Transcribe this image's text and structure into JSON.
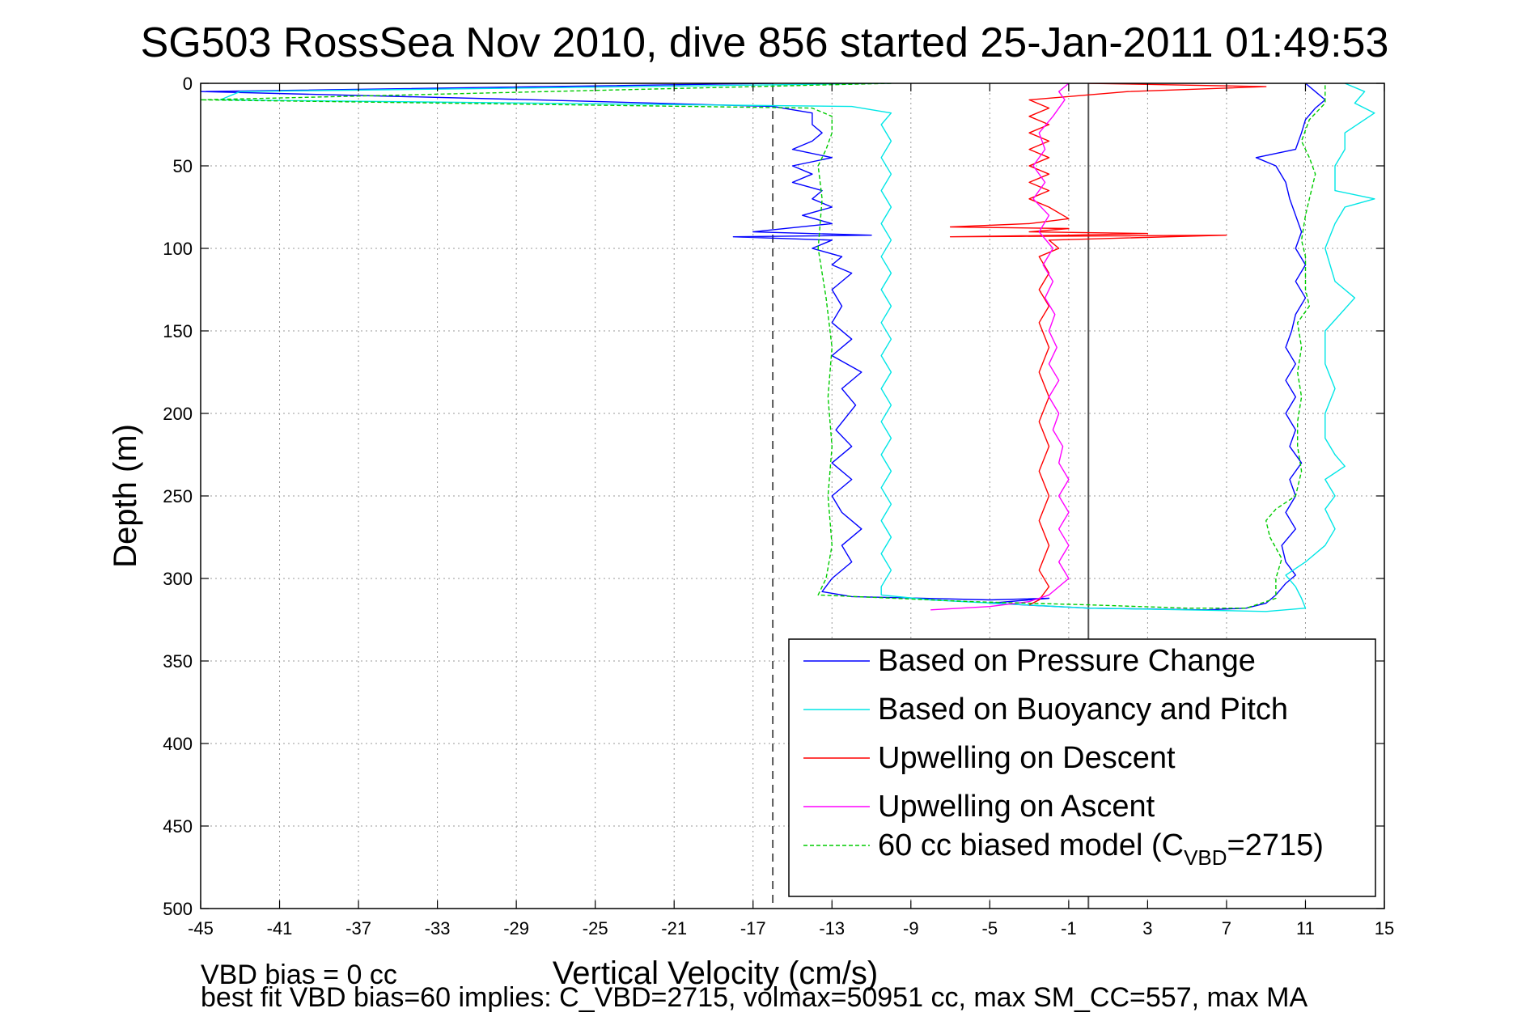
{
  "chart_data": {
    "type": "line",
    "title": "SG503 RossSea Nov 2010, dive 856 started 25-Jan-2011 01:49:53",
    "xlabel": "Vertical Velocity (cm/s)",
    "ylabel": "Depth (m)",
    "xlim": [
      -45,
      15
    ],
    "ylim": [
      0,
      500
    ],
    "y_reversed": true,
    "grid": "dotted",
    "xticks": [
      -45,
      -41,
      -37,
      -33,
      -29,
      -25,
      -21,
      -17,
      -13,
      -9,
      -5,
      -1,
      3,
      7,
      11,
      15
    ],
    "yticks": [
      0,
      50,
      100,
      150,
      200,
      250,
      300,
      350,
      400,
      450,
      500
    ],
    "legend_position": "bottom-right",
    "reference_lines": [
      {
        "orientation": "vertical",
        "x": -16,
        "style": "dashed",
        "color": "#555555"
      },
      {
        "orientation": "vertical",
        "x": 0,
        "style": "solid",
        "color": "#555555"
      }
    ],
    "series": [
      {
        "name": "Based on Pressure Change",
        "color": "#0000ff",
        "style": "solid",
        "points": [
          [
            -16,
            0
          ],
          [
            -45,
            5
          ],
          [
            -28,
            10
          ],
          [
            -16,
            14
          ],
          [
            -14,
            18
          ],
          [
            -14,
            25
          ],
          [
            -13.5,
            30
          ],
          [
            -14,
            35
          ],
          [
            -15,
            40
          ],
          [
            -13,
            45
          ],
          [
            -15,
            50
          ],
          [
            -14,
            55
          ],
          [
            -15,
            60
          ],
          [
            -13.5,
            65
          ],
          [
            -14,
            70
          ],
          [
            -13,
            75
          ],
          [
            -14.5,
            80
          ],
          [
            -13,
            85
          ],
          [
            -17,
            90
          ],
          [
            -11,
            92
          ],
          [
            -18,
            93
          ],
          [
            -13,
            95
          ],
          [
            -14,
            100
          ],
          [
            -12.5,
            105
          ],
          [
            -13,
            110
          ],
          [
            -12,
            115
          ],
          [
            -13,
            125
          ],
          [
            -12.5,
            135
          ],
          [
            -13,
            145
          ],
          [
            -12,
            155
          ],
          [
            -13,
            165
          ],
          [
            -11.5,
            175
          ],
          [
            -12.5,
            185
          ],
          [
            -11.8,
            195
          ],
          [
            -12.8,
            210
          ],
          [
            -12,
            220
          ],
          [
            -13,
            230
          ],
          [
            -12,
            240
          ],
          [
            -13,
            250
          ],
          [
            -12.5,
            260
          ],
          [
            -11.5,
            270
          ],
          [
            -12.5,
            280
          ],
          [
            -12,
            290
          ],
          [
            -13,
            300
          ],
          [
            -13.5,
            308
          ],
          [
            -12,
            311
          ],
          [
            -5,
            313
          ],
          [
            -2,
            312
          ],
          [
            -5,
            315
          ],
          [
            0,
            318
          ],
          [
            6,
            319
          ],
          [
            8,
            318
          ],
          [
            9,
            315
          ],
          [
            9.5,
            310
          ],
          [
            10,
            303
          ],
          [
            10.5,
            298
          ],
          [
            10,
            290
          ],
          [
            9.8,
            280
          ],
          [
            10.5,
            270
          ],
          [
            10,
            260
          ],
          [
            10.5,
            250
          ],
          [
            10.2,
            240
          ],
          [
            10.8,
            230
          ],
          [
            10.2,
            220
          ],
          [
            10.5,
            210
          ],
          [
            10,
            200
          ],
          [
            10.5,
            190
          ],
          [
            10,
            180
          ],
          [
            10.5,
            170
          ],
          [
            10,
            160
          ],
          [
            10.3,
            150
          ],
          [
            10.5,
            140
          ],
          [
            11,
            130
          ],
          [
            10.5,
            120
          ],
          [
            11,
            110
          ],
          [
            10.5,
            100
          ],
          [
            10.8,
            90
          ],
          [
            10.5,
            80
          ],
          [
            10.2,
            70
          ],
          [
            10,
            60
          ],
          [
            9.5,
            50
          ],
          [
            8.5,
            45
          ],
          [
            10.5,
            40
          ],
          [
            10.8,
            30
          ],
          [
            11,
            22
          ],
          [
            11.5,
            15
          ],
          [
            12,
            10
          ],
          [
            11.5,
            5
          ],
          [
            11,
            0
          ]
        ]
      },
      {
        "name": "Based on Buoyancy and Pitch",
        "color": "#00e6e6",
        "style": "solid",
        "points": [
          [
            -10,
            0
          ],
          [
            -43,
            5
          ],
          [
            -44,
            10
          ],
          [
            -12,
            14
          ],
          [
            -10,
            18
          ],
          [
            -10.5,
            25
          ],
          [
            -10,
            35
          ],
          [
            -10.5,
            45
          ],
          [
            -10,
            55
          ],
          [
            -10.5,
            65
          ],
          [
            -10,
            75
          ],
          [
            -10.5,
            85
          ],
          [
            -10,
            95
          ],
          [
            -10.5,
            105
          ],
          [
            -10,
            115
          ],
          [
            -10.5,
            125
          ],
          [
            -10,
            135
          ],
          [
            -10.5,
            145
          ],
          [
            -10,
            155
          ],
          [
            -10.5,
            165
          ],
          [
            -10,
            175
          ],
          [
            -10.5,
            185
          ],
          [
            -10,
            195
          ],
          [
            -10.5,
            205
          ],
          [
            -10,
            215
          ],
          [
            -10.5,
            225
          ],
          [
            -10,
            235
          ],
          [
            -10.5,
            245
          ],
          [
            -10,
            255
          ],
          [
            -10.5,
            265
          ],
          [
            -10,
            275
          ],
          [
            -10.5,
            285
          ],
          [
            -10,
            295
          ],
          [
            -10.5,
            305
          ],
          [
            -10.5,
            310
          ],
          [
            -8,
            313
          ],
          [
            0,
            318
          ],
          [
            5,
            319
          ],
          [
            9,
            320
          ],
          [
            11,
            318
          ],
          [
            10.8,
            312
          ],
          [
            10.5,
            305
          ],
          [
            10,
            298
          ],
          [
            11,
            290
          ],
          [
            12,
            280
          ],
          [
            12.5,
            270
          ],
          [
            12,
            258
          ],
          [
            12.5,
            250
          ],
          [
            12,
            240
          ],
          [
            13,
            232
          ],
          [
            12.5,
            225
          ],
          [
            12,
            215
          ],
          [
            12,
            200
          ],
          [
            12.5,
            185
          ],
          [
            12,
            170
          ],
          [
            12,
            150
          ],
          [
            13.5,
            130
          ],
          [
            12.5,
            120
          ],
          [
            12,
            100
          ],
          [
            12.5,
            85
          ],
          [
            13,
            75
          ],
          [
            14.5,
            70
          ],
          [
            12.5,
            65
          ],
          [
            12.5,
            50
          ],
          [
            13,
            40
          ],
          [
            13,
            30
          ],
          [
            14.5,
            18
          ],
          [
            13.5,
            12
          ],
          [
            14,
            5
          ],
          [
            13,
            0
          ]
        ]
      },
      {
        "name": "Upwelling on Descent",
        "color": "#ff0000",
        "style": "solid",
        "points": [
          [
            0,
            0
          ],
          [
            9,
            2
          ],
          [
            2,
            5
          ],
          [
            -3,
            10
          ],
          [
            -2,
            15
          ],
          [
            -3,
            20
          ],
          [
            -2,
            25
          ],
          [
            -3,
            30
          ],
          [
            -2,
            35
          ],
          [
            -3,
            40
          ],
          [
            -2,
            45
          ],
          [
            -3,
            50
          ],
          [
            -2,
            55
          ],
          [
            -3,
            60
          ],
          [
            -2,
            65
          ],
          [
            -3,
            70
          ],
          [
            -2,
            75
          ],
          [
            -1,
            82
          ],
          [
            -3,
            85
          ],
          [
            -7,
            87
          ],
          [
            -1,
            88
          ],
          [
            -3,
            90
          ],
          [
            3,
            91
          ],
          [
            -1,
            92
          ],
          [
            -7,
            93
          ],
          [
            7,
            92
          ],
          [
            -2,
            95
          ],
          [
            -1.5,
            100
          ],
          [
            -2.5,
            105
          ],
          [
            -2,
            115
          ],
          [
            -2.5,
            125
          ],
          [
            -2,
            135
          ],
          [
            -2.5,
            145
          ],
          [
            -2,
            160
          ],
          [
            -2.5,
            175
          ],
          [
            -2,
            190
          ],
          [
            -2.5,
            205
          ],
          [
            -2,
            220
          ],
          [
            -2.5,
            235
          ],
          [
            -2,
            250
          ],
          [
            -2.5,
            265
          ],
          [
            -2,
            280
          ],
          [
            -2.5,
            295
          ],
          [
            -2,
            305
          ],
          [
            -2.5,
            313
          ],
          [
            -3,
            316
          ]
        ]
      },
      {
        "name": "Upwelling on Ascent",
        "color": "#ff00ff",
        "style": "solid",
        "points": [
          [
            -8,
            319
          ],
          [
            -5,
            317
          ],
          [
            -3,
            314
          ],
          [
            -2,
            310
          ],
          [
            -1,
            300
          ],
          [
            -1.5,
            290
          ],
          [
            -1,
            280
          ],
          [
            -1.5,
            270
          ],
          [
            -1,
            260
          ],
          [
            -1.5,
            250
          ],
          [
            -1,
            240
          ],
          [
            -1.5,
            230
          ],
          [
            -1.3,
            220
          ],
          [
            -1.8,
            210
          ],
          [
            -1.5,
            200
          ],
          [
            -2,
            190
          ],
          [
            -1.5,
            180
          ],
          [
            -2,
            170
          ],
          [
            -1.6,
            160
          ],
          [
            -2,
            150
          ],
          [
            -1.7,
            140
          ],
          [
            -2.2,
            130
          ],
          [
            -1.8,
            120
          ],
          [
            -2.3,
            110
          ],
          [
            -1.8,
            100
          ],
          [
            -2.5,
            90
          ],
          [
            -2,
            80
          ],
          [
            -2.8,
            70
          ],
          [
            -2.2,
            60
          ],
          [
            -2.8,
            50
          ],
          [
            -2.2,
            40
          ],
          [
            -2.5,
            30
          ],
          [
            -1.8,
            20
          ],
          [
            -1.2,
            10
          ],
          [
            -1.5,
            5
          ],
          [
            -1,
            0
          ]
        ]
      },
      {
        "name": "60 cc biased model (C_VBD=2715)",
        "color": "#00cc00",
        "style": "dashed",
        "points": [
          [
            -10,
            0
          ],
          [
            -45,
            10
          ],
          [
            -14,
            15
          ],
          [
            -13,
            20
          ],
          [
            -13,
            30
          ],
          [
            -13.3,
            40
          ],
          [
            -13.7,
            50
          ],
          [
            -13.5,
            70
          ],
          [
            -13.7,
            100
          ],
          [
            -13.3,
            130
          ],
          [
            -13,
            160
          ],
          [
            -13.2,
            190
          ],
          [
            -13,
            220
          ],
          [
            -13.2,
            250
          ],
          [
            -13,
            280
          ],
          [
            -13.3,
            300
          ],
          [
            -13.7,
            310
          ],
          [
            -6,
            314
          ],
          [
            0,
            316
          ],
          [
            5,
            318
          ],
          [
            8,
            318
          ],
          [
            9.5,
            312
          ],
          [
            9.5,
            300
          ],
          [
            9.8,
            288
          ],
          [
            9.2,
            275
          ],
          [
            9,
            265
          ],
          [
            9.5,
            258
          ],
          [
            10.5,
            250
          ],
          [
            10.8,
            235
          ],
          [
            10.6,
            220
          ],
          [
            10.6,
            205
          ],
          [
            10.8,
            190
          ],
          [
            10.6,
            175
          ],
          [
            10.8,
            160
          ],
          [
            10.6,
            145
          ],
          [
            11.2,
            135
          ],
          [
            11,
            125
          ],
          [
            11,
            105
          ],
          [
            10.8,
            95
          ],
          [
            11,
            80
          ],
          [
            11.2,
            70
          ],
          [
            11.5,
            55
          ],
          [
            11.2,
            45
          ],
          [
            10.8,
            35
          ],
          [
            11.2,
            22
          ],
          [
            12,
            12
          ],
          [
            12,
            5
          ],
          [
            12,
            0
          ]
        ]
      }
    ],
    "legend_entries": [
      {
        "label": "Based on Pressure Change"
      },
      {
        "label": "Based on Buoyancy and Pitch"
      },
      {
        "label": "Upwelling on Descent"
      },
      {
        "label": "Upwelling on Ascent"
      },
      {
        "label_main": "60 cc biased model (C",
        "label_sub": "VBD",
        "label_tail": "=2715)"
      }
    ]
  },
  "notes": {
    "bias_line": "VBD bias = 0 cc",
    "fit_line": "best fit VBD bias=60 implies: C_VBD=2715, volmax=50951 cc, max SM_CC=557, max MA"
  }
}
